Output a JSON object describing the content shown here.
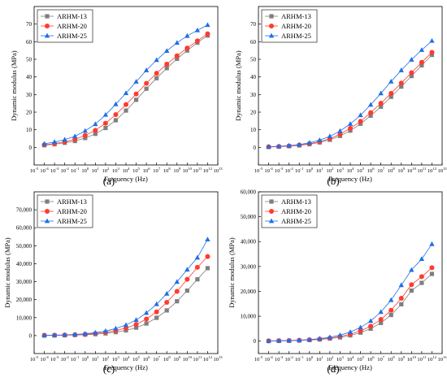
{
  "figure": {
    "panels": [
      {
        "caption": "(a)"
      },
      {
        "caption": "(b)"
      },
      {
        "caption": "(c)"
      },
      {
        "caption": "(d)"
      }
    ]
  },
  "chart_data": [
    {
      "type": "line",
      "panel": "(a)",
      "xlabel": "Frequency (Hz)",
      "ylabel": "Dynamic modulus (MPa)",
      "x_scale": "log",
      "x_ticks": [
        -5,
        -4,
        -3,
        -2,
        -1,
        0,
        1,
        2,
        3,
        4,
        5,
        6,
        7,
        8,
        9,
        10,
        11,
        12,
        13
      ],
      "y_ticks": [
        0,
        10,
        20,
        30,
        40,
        50,
        60,
        70
      ],
      "ylim": [
        -10,
        80
      ],
      "xlim": [
        -5,
        13
      ],
      "grid": false,
      "legend_position": "top-left",
      "x": [
        -4,
        -3,
        -2,
        -1,
        0,
        1,
        2,
        3,
        4,
        5,
        6,
        7,
        8,
        9,
        10,
        11,
        12
      ],
      "series": [
        {
          "name": "ARHM-13",
          "marker": "square",
          "color": "#7f7f7f",
          "values": [
            1.2,
            1.8,
            2.6,
            3.6,
            5.3,
            7.7,
            11.0,
            15.4,
            20.9,
            27.0,
            33.3,
            39.3,
            45.0,
            50.3,
            55.0,
            59.5,
            63.5
          ]
        },
        {
          "name": "ARHM-20",
          "marker": "circle",
          "color": "#ff3b2f",
          "values": [
            1.5,
            2.2,
            3.2,
            4.6,
            6.8,
            9.7,
            13.7,
            18.6,
            24.3,
            30.3,
            36.4,
            42.1,
            47.3,
            52.0,
            56.4,
            60.5,
            64.5
          ]
        },
        {
          "name": "ARHM-25",
          "marker": "triangle",
          "color": "#1f6fe8",
          "values": [
            2.0,
            3.1,
            4.4,
            6.3,
            9.4,
            13.2,
            18.5,
            24.5,
            30.8,
            37.3,
            43.8,
            49.6,
            54.8,
            59.4,
            63.3,
            66.5,
            69.5
          ]
        }
      ]
    },
    {
      "type": "line",
      "panel": "(b)",
      "xlabel": "Frequency (Hz)",
      "ylabel": "Dynamic modulus (MPa)",
      "x_scale": "log",
      "x_ticks": [
        -5,
        -4,
        -3,
        -2,
        -1,
        0,
        1,
        2,
        3,
        4,
        5,
        6,
        7,
        8,
        9,
        10,
        11,
        12,
        13
      ],
      "y_ticks": [
        0,
        10,
        20,
        30,
        40,
        50,
        60,
        70
      ],
      "ylim": [
        -10,
        80
      ],
      "xlim": [
        -5,
        13
      ],
      "grid": false,
      "legend_position": "top-left",
      "x": [
        -4,
        -3,
        -2,
        -1,
        0,
        1,
        2,
        3,
        4,
        5,
        6,
        7,
        8,
        9,
        10,
        11,
        12
      ],
      "series": [
        {
          "name": "ARHM-13",
          "marker": "square",
          "color": "#7f7f7f",
          "values": [
            0.2,
            0.4,
            0.7,
            1.1,
            1.8,
            2.8,
            4.3,
            6.5,
            9.5,
            13.4,
            18.0,
            23.1,
            28.7,
            34.5,
            40.5,
            46.6,
            52.5
          ]
        },
        {
          "name": "ARHM-20",
          "marker": "circle",
          "color": "#ff3b2f",
          "values": [
            0.3,
            0.5,
            0.8,
            1.3,
            2.1,
            3.3,
            5.0,
            7.5,
            10.8,
            14.8,
            19.7,
            25.1,
            30.7,
            36.5,
            42.4,
            48.3,
            54.0
          ]
        },
        {
          "name": "ARHM-25",
          "marker": "triangle",
          "color": "#1f6fe8",
          "values": [
            0.4,
            0.6,
            1.0,
            1.6,
            2.6,
            4.1,
            6.3,
            9.3,
            13.3,
            18.3,
            24.2,
            30.7,
            37.4,
            43.8,
            49.8,
            55.3,
            60.5
          ]
        }
      ]
    },
    {
      "type": "line",
      "panel": "(c)",
      "xlabel": "Frequency (Hz)",
      "ylabel": "Dynamic modulus (MPa)",
      "x_scale": "log",
      "x_ticks": [
        -5,
        -4,
        -3,
        -2,
        -1,
        0,
        1,
        2,
        3,
        4,
        5,
        6,
        7,
        8,
        9,
        10,
        11,
        12,
        13
      ],
      "y_ticks": [
        "0",
        "10,000",
        "20,000",
        "30,000",
        "40,000",
        "50,000",
        "60,000",
        "70,000"
      ],
      "ylim": [
        -10000,
        80000
      ],
      "xlim": [
        -5,
        13
      ],
      "grid": false,
      "legend_position": "top-left",
      "x": [
        -4,
        -3,
        -2,
        -1,
        0,
        1,
        2,
        3,
        4,
        5,
        6,
        7,
        8,
        9,
        10,
        11,
        12
      ],
      "series": [
        {
          "name": "ARHM-13",
          "marker": "square",
          "color": "#7f7f7f",
          "values": [
            80,
            130,
            200,
            320,
            500,
            780,
            1200,
            1900,
            2900,
            4400,
            6700,
            9900,
            14000,
            19100,
            25000,
            31300,
            37500
          ]
        },
        {
          "name": "ARHM-20",
          "marker": "circle",
          "color": "#ff3b2f",
          "values": [
            110,
            180,
            280,
            450,
            720,
            1150,
            1800,
            2800,
            4200,
            6200,
            9200,
            13200,
            18500,
            24600,
            31300,
            38000,
            44000
          ]
        },
        {
          "name": "ARHM-25",
          "marker": "triangle",
          "color": "#1f6fe8",
          "values": [
            150,
            250,
            400,
            640,
            1020,
            1620,
            2550,
            3950,
            5900,
            8700,
            12600,
            17500,
            23300,
            29900,
            36700,
            43400,
            53500
          ]
        }
      ]
    },
    {
      "type": "line",
      "panel": "(d)",
      "xlabel": "Frequency (Hz)",
      "ylabel": "Dynamic modulus (MPa)",
      "x_scale": "log",
      "x_ticks": [
        -5,
        -4,
        -3,
        -2,
        -1,
        0,
        1,
        2,
        3,
        4,
        5,
        6,
        7,
        8,
        9,
        10,
        11,
        12,
        13
      ],
      "y_ticks": [
        "0",
        "10,000",
        "20,000",
        "30,000",
        "40,000",
        "50,000",
        "60,000"
      ],
      "ylim": [
        -5000,
        60000
      ],
      "xlim": [
        -5,
        13
      ],
      "grid": false,
      "legend_position": "top-left",
      "x": [
        -4,
        -3,
        -2,
        -1,
        0,
        1,
        2,
        3,
        4,
        5,
        6,
        7,
        8,
        9,
        10,
        11,
        12
      ],
      "series": [
        {
          "name": "ARHM-13",
          "marker": "square",
          "color": "#7f7f7f",
          "values": [
            70,
            110,
            170,
            270,
            420,
            650,
            1000,
            1500,
            2300,
            3400,
            5000,
            7300,
            10500,
            14800,
            20300,
            23400,
            27000
          ]
        },
        {
          "name": "ARHM-20",
          "marker": "circle",
          "color": "#ff3b2f",
          "values": [
            80,
            130,
            200,
            320,
            500,
            780,
            1200,
            1850,
            2800,
            4100,
            6000,
            8700,
            12400,
            17200,
            22700,
            25900,
            29500
          ]
        },
        {
          "name": "ARHM-25",
          "marker": "triangle",
          "color": "#1f6fe8",
          "values": [
            100,
            160,
            250,
            400,
            630,
            1000,
            1550,
            2400,
            3650,
            5500,
            8100,
            11700,
            16500,
            22500,
            28600,
            33000,
            39000
          ]
        }
      ]
    }
  ]
}
